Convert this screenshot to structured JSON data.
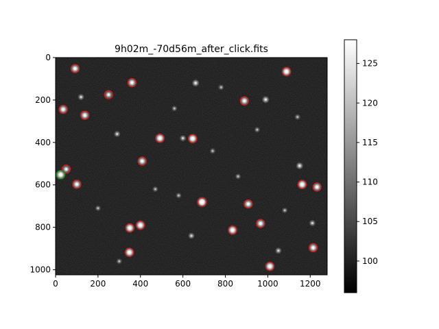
{
  "chart_data": {
    "type": "heatmap",
    "title": "9h02m_-70d56m_after_click.fits",
    "xlabel": "",
    "ylabel": "",
    "xlim": [
      0,
      1280
    ],
    "ylim": [
      1024,
      0
    ],
    "x_ticks": [
      0,
      200,
      400,
      600,
      800,
      1000,
      1200
    ],
    "y_ticks": [
      0,
      200,
      400,
      600,
      800,
      1000
    ],
    "grid": false,
    "colormap": "gray",
    "colorbar": {
      "range": [
        96,
        128
      ],
      "ticks": [
        100,
        105,
        110,
        115,
        120,
        125
      ]
    },
    "background_level": 99,
    "stars": [
      {
        "x": 92,
        "y": 52,
        "bright": 0.8,
        "marker": "red"
      },
      {
        "x": 1088,
        "y": 66,
        "bright": 0.9,
        "marker": "red"
      },
      {
        "x": 360,
        "y": 118,
        "bright": 0.8,
        "marker": "red"
      },
      {
        "x": 250,
        "y": 175,
        "bright": 0.7,
        "marker": "red"
      },
      {
        "x": 890,
        "y": 204,
        "bright": 0.8,
        "marker": "red"
      },
      {
        "x": 36,
        "y": 244,
        "bright": 0.8,
        "marker": "red"
      },
      {
        "x": 138,
        "y": 272,
        "bright": 0.8,
        "marker": "red"
      },
      {
        "x": 492,
        "y": 380,
        "bright": 0.9,
        "marker": "red"
      },
      {
        "x": 646,
        "y": 382,
        "bright": 0.9,
        "marker": "red"
      },
      {
        "x": 408,
        "y": 488,
        "bright": 0.8,
        "marker": "red"
      },
      {
        "x": 50,
        "y": 526,
        "bright": 0.7,
        "marker": "red"
      },
      {
        "x": 24,
        "y": 552,
        "bright": 0.9,
        "marker": "green"
      },
      {
        "x": 100,
        "y": 597,
        "bright": 0.8,
        "marker": "red"
      },
      {
        "x": 1162,
        "y": 598,
        "bright": 0.9,
        "marker": "red"
      },
      {
        "x": 1232,
        "y": 610,
        "bright": 0.8,
        "marker": "red"
      },
      {
        "x": 690,
        "y": 681,
        "bright": 1.0,
        "marker": "red"
      },
      {
        "x": 908,
        "y": 690,
        "bright": 0.8,
        "marker": "red"
      },
      {
        "x": 400,
        "y": 790,
        "bright": 0.9,
        "marker": "red"
      },
      {
        "x": 350,
        "y": 803,
        "bright": 0.9,
        "marker": "red"
      },
      {
        "x": 966,
        "y": 782,
        "bright": 0.8,
        "marker": "red"
      },
      {
        "x": 834,
        "y": 813,
        "bright": 0.9,
        "marker": "red"
      },
      {
        "x": 1214,
        "y": 896,
        "bright": 0.8,
        "marker": "red"
      },
      {
        "x": 348,
        "y": 918,
        "bright": 0.9,
        "marker": "red"
      },
      {
        "x": 1010,
        "y": 984,
        "bright": 0.9,
        "marker": "red"
      },
      {
        "x": 660,
        "y": 120,
        "bright": 0.6,
        "marker": "none"
      },
      {
        "x": 990,
        "y": 198,
        "bright": 0.6,
        "marker": "none"
      },
      {
        "x": 120,
        "y": 186,
        "bright": 0.5,
        "marker": "none"
      },
      {
        "x": 1150,
        "y": 510,
        "bright": 0.6,
        "marker": "none"
      },
      {
        "x": 1210,
        "y": 780,
        "bright": 0.5,
        "marker": "none"
      },
      {
        "x": 1050,
        "y": 910,
        "bright": 0.5,
        "marker": "none"
      },
      {
        "x": 640,
        "y": 840,
        "bright": 0.5,
        "marker": "none"
      },
      {
        "x": 600,
        "y": 380,
        "bright": 0.5,
        "marker": "none"
      },
      {
        "x": 290,
        "y": 360,
        "bright": 0.5,
        "marker": "none"
      },
      {
        "x": 200,
        "y": 710,
        "bright": 0.4,
        "marker": "none"
      },
      {
        "x": 560,
        "y": 240,
        "bright": 0.4,
        "marker": "none"
      },
      {
        "x": 1140,
        "y": 280,
        "bright": 0.4,
        "marker": "none"
      },
      {
        "x": 780,
        "y": 140,
        "bright": 0.4,
        "marker": "none"
      },
      {
        "x": 470,
        "y": 620,
        "bright": 0.4,
        "marker": "none"
      },
      {
        "x": 860,
        "y": 560,
        "bright": 0.4,
        "marker": "none"
      },
      {
        "x": 300,
        "y": 960,
        "bright": 0.4,
        "marker": "none"
      },
      {
        "x": 580,
        "y": 650,
        "bright": 0.4,
        "marker": "none"
      },
      {
        "x": 740,
        "y": 440,
        "bright": 0.4,
        "marker": "none"
      },
      {
        "x": 950,
        "y": 340,
        "bright": 0.4,
        "marker": "none"
      },
      {
        "x": 1080,
        "y": 720,
        "bright": 0.4,
        "marker": "none"
      }
    ],
    "marker_colors": {
      "red": "#dd1c1c",
      "green": "#1a9a1a"
    }
  }
}
